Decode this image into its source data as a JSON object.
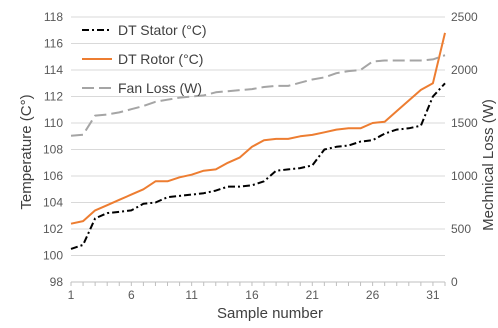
{
  "chart_data": {
    "type": "line",
    "title": "",
    "xlabel": "Sample number",
    "ylabel": "Temperature (C°)",
    "y2label": "Mechnical Loss (W)",
    "x": [
      1,
      2,
      3,
      4,
      5,
      6,
      7,
      8,
      9,
      10,
      11,
      12,
      13,
      14,
      15,
      16,
      17,
      18,
      19,
      20,
      21,
      22,
      23,
      24,
      25,
      26,
      27,
      28,
      29,
      30,
      31,
      32
    ],
    "xticks": [
      1,
      6,
      11,
      16,
      21,
      26,
      31
    ],
    "ylim": [
      98,
      118
    ],
    "yticks": [
      98,
      100,
      102,
      104,
      106,
      108,
      110,
      112,
      114,
      116,
      118
    ],
    "y2lim": [
      0,
      2500
    ],
    "y2ticks": [
      0,
      500,
      1000,
      1500,
      2000,
      2500
    ],
    "grid": "horizontal",
    "legend_position": "top-left",
    "series": [
      {
        "name": "DT Stator (°C)",
        "axis": "left",
        "color": "#000000",
        "style": "dash-dot",
        "values": [
          100.5,
          100.8,
          102.8,
          103.2,
          103.3,
          103.4,
          103.9,
          104.0,
          104.4,
          104.5,
          104.6,
          104.7,
          104.9,
          105.2,
          105.2,
          105.3,
          105.6,
          106.4,
          106.5,
          106.6,
          106.8,
          108.0,
          108.2,
          108.3,
          108.6,
          108.7,
          109.2,
          109.5,
          109.6,
          109.8,
          112.0,
          113.0
        ]
      },
      {
        "name": "DT Rotor (°C)",
        "axis": "left",
        "color": "#ed7d31",
        "style": "solid",
        "values": [
          102.4,
          102.6,
          103.4,
          103.8,
          104.2,
          104.6,
          105.0,
          105.6,
          105.6,
          105.9,
          106.1,
          106.4,
          106.5,
          107.0,
          107.4,
          108.2,
          108.7,
          108.8,
          108.8,
          109.0,
          109.1,
          109.3,
          109.5,
          109.6,
          109.6,
          110.0,
          110.1,
          110.9,
          111.7,
          112.5,
          113.0,
          116.8
        ]
      },
      {
        "name": "Fan Loss (W)",
        "axis": "right",
        "color": "#a5a5a5",
        "style": "dashed",
        "values": [
          1380,
          1390,
          1570,
          1580,
          1600,
          1630,
          1660,
          1700,
          1720,
          1740,
          1750,
          1760,
          1790,
          1800,
          1810,
          1820,
          1840,
          1850,
          1850,
          1880,
          1910,
          1930,
          1970,
          1990,
          2000,
          2080,
          2090,
          2090,
          2090,
          2090,
          2100,
          2140
        ]
      }
    ]
  }
}
